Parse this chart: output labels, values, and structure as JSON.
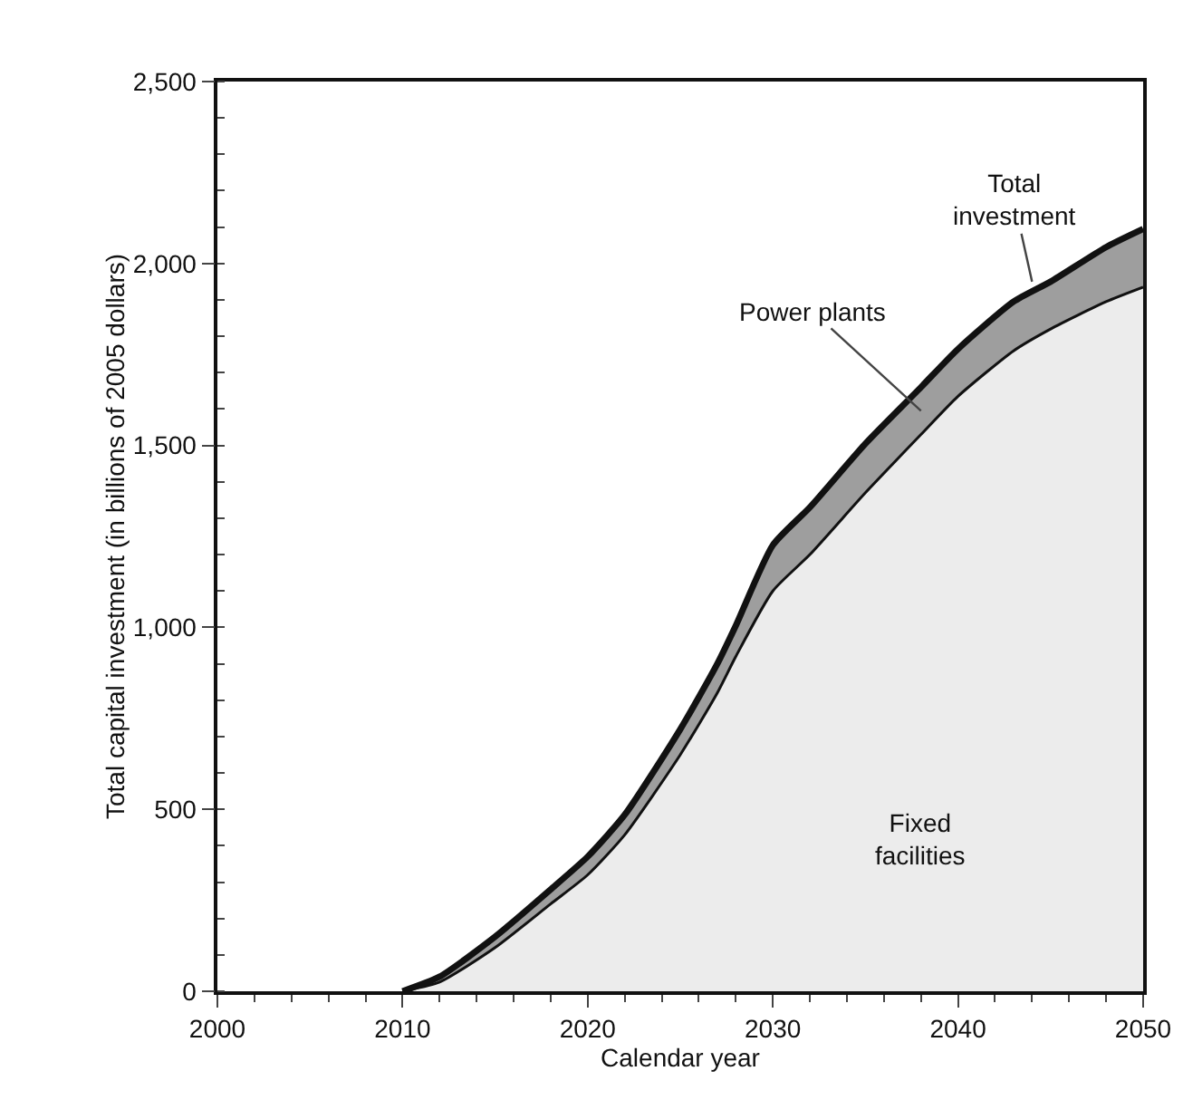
{
  "chart_data": {
    "type": "area",
    "stacked": true,
    "xlabel": "Calendar year",
    "ylabel": "Total capital investment (in billions of 2005 dollars)",
    "x": [
      2010,
      2012,
      2015,
      2018,
      2020,
      2022,
      2025,
      2027,
      2028,
      2030,
      2032,
      2035,
      2038,
      2040,
      2043,
      2045,
      2048,
      2050
    ],
    "series": [
      {
        "name": "Fixed facilities",
        "color": "#ececec",
        "values": [
          0,
          25,
          120,
          240,
          320,
          430,
          650,
          820,
          920,
          1100,
          1200,
          1370,
          1530,
          1635,
          1760,
          1820,
          1895,
          1935
        ]
      },
      {
        "name": "Power plants",
        "color": "#9e9e9e",
        "values": [
          0,
          15,
          30,
          40,
          50,
          55,
          70,
          80,
          85,
          126,
          130,
          135,
          130,
          130,
          135,
          130,
          150,
          160
        ]
      }
    ],
    "annotations": [
      {
        "text": "Total investment",
        "x": 2044,
        "y": 1950
      }
    ],
    "xlim": [
      2000,
      2050
    ],
    "xticks": [
      2000,
      2010,
      2020,
      2030,
      2040,
      2050
    ],
    "ylim": [
      0,
      2500
    ],
    "yticks": [
      0,
      {
        "value": 500,
        "label": "500"
      },
      {
        "value": 1000,
        "label": "1,000"
      },
      {
        "value": 1500,
        "label": "1,500"
      },
      {
        "value": 2000,
        "label": "2,000"
      },
      {
        "value": 2500,
        "label": "2,500"
      }
    ],
    "grid": false,
    "legend": false
  }
}
